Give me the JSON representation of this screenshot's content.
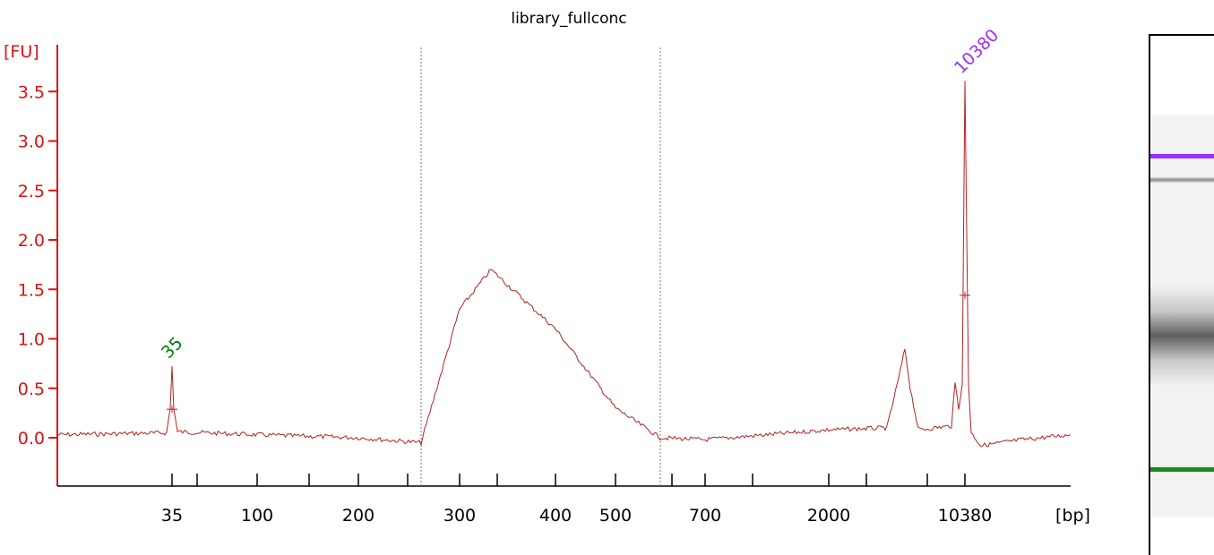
{
  "title": "library_fullconc",
  "colors": {
    "trace": "#b22222",
    "axis": "#e01010",
    "lower_marker": "#008000",
    "upper_marker": "#9b30ff"
  },
  "chart_data": {
    "type": "line",
    "title": "library_fullconc",
    "ylabel": "[FU]",
    "xlabel": "[bp]",
    "ylim": [
      -0.45,
      4.0
    ],
    "yticks": [
      "0.0",
      "0.5",
      "1.0",
      "1.5",
      "2.0",
      "2.5",
      "3.0",
      "3.5"
    ],
    "xticks": [
      "35",
      "100",
      "200",
      "300",
      "400",
      "500",
      "700",
      "2000",
      "10380"
    ],
    "peak_labels": [
      {
        "label": "35",
        "bp": "35",
        "height": 0.72,
        "color": "#008000"
      },
      {
        "label": "10380",
        "bp": "10380",
        "height": 3.6,
        "color": "#9b30ff"
      }
    ],
    "region_bounds_bp": [
      250,
      600
    ],
    "series": [
      {
        "x": [
          "35",
          "100",
          "200",
          "250",
          "300",
          "350",
          "400",
          "500",
          "600",
          "700",
          "2000",
          "6000",
          "10380"
        ],
        "y": [
          0.72,
          0.03,
          0.0,
          -0.05,
          1.3,
          1.7,
          1.1,
          0.3,
          0.0,
          -0.02,
          0.08,
          0.9,
          3.6
        ]
      }
    ]
  },
  "gel": {
    "bands": [
      {
        "name": "upper-marker",
        "color": "#9b30ff"
      },
      {
        "name": "high-band",
        "color": "#888888"
      },
      {
        "name": "library-smear",
        "color": "#606060"
      },
      {
        "name": "lower-marker",
        "color": "#1a8a1a"
      }
    ]
  }
}
